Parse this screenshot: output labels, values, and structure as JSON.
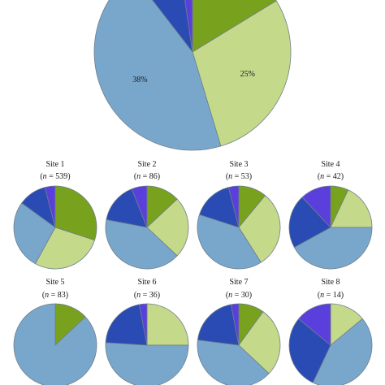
{
  "colors": {
    "dark_green": "#78a11e",
    "light_green": "#c5d98b",
    "light_blue": "#79a7cc",
    "dark_blue": "#2a4bb3",
    "purple": "#5a3fdc",
    "outline": "#6f7f8a"
  },
  "chart_data": [
    {
      "type": "pie",
      "name": "overall",
      "slices": [
        {
          "category": "dark_green",
          "value": 14
        },
        {
          "category": "light_green",
          "value": 25,
          "label": "25%"
        },
        {
          "category": "light_blue",
          "value": 38,
          "label": "38%"
        },
        {
          "category": "dark_blue",
          "value": 7
        },
        {
          "category": "purple",
          "value": 2
        }
      ]
    },
    {
      "type": "pie",
      "title": "Site 1",
      "n_prefix": "n",
      "n_suffix": " = 539",
      "slices": [
        {
          "category": "dark_green",
          "value": 30
        },
        {
          "category": "light_green",
          "value": 28
        },
        {
          "category": "light_blue",
          "value": 27
        },
        {
          "category": "dark_blue",
          "value": 11
        },
        {
          "category": "purple",
          "value": 4
        }
      ]
    },
    {
      "type": "pie",
      "title": "Site 2",
      "n_prefix": "n",
      "n_suffix": " = 86",
      "slices": [
        {
          "category": "dark_green",
          "value": 13
        },
        {
          "category": "light_green",
          "value": 24
        },
        {
          "category": "light_blue",
          "value": 41
        },
        {
          "category": "dark_blue",
          "value": 16
        },
        {
          "category": "purple",
          "value": 6
        }
      ]
    },
    {
      "type": "pie",
      "title": "Site 3",
      "n_prefix": "n",
      "n_suffix": " = 53",
      "slices": [
        {
          "category": "dark_green",
          "value": 11
        },
        {
          "category": "light_green",
          "value": 30
        },
        {
          "category": "light_blue",
          "value": 39
        },
        {
          "category": "dark_blue",
          "value": 16
        },
        {
          "category": "purple",
          "value": 4
        }
      ]
    },
    {
      "type": "pie",
      "title": "Site 4",
      "n_prefix": "n",
      "n_suffix": " = 42",
      "slices": [
        {
          "category": "dark_green",
          "value": 7
        },
        {
          "category": "light_green",
          "value": 18
        },
        {
          "category": "light_blue",
          "value": 42
        },
        {
          "category": "dark_blue",
          "value": 21
        },
        {
          "category": "purple",
          "value": 12
        }
      ]
    },
    {
      "type": "pie",
      "title": "Site 5",
      "n_prefix": "n",
      "n_suffix": " = 83",
      "slices": [
        {
          "category": "dark_green",
          "value": 13
        },
        {
          "category": "light_green",
          "value": 0
        },
        {
          "category": "light_blue",
          "value": 87
        },
        {
          "category": "dark_blue",
          "value": 0
        },
        {
          "category": "purple",
          "value": 0
        }
      ]
    },
    {
      "type": "pie",
      "title": "Site 6",
      "n_prefix": "n",
      "n_suffix": " = 36",
      "slices": [
        {
          "category": "dark_green",
          "value": 0
        },
        {
          "category": "light_green",
          "value": 25
        },
        {
          "category": "light_blue",
          "value": 51
        },
        {
          "category": "dark_blue",
          "value": 21
        },
        {
          "category": "purple",
          "value": 3
        }
      ]
    },
    {
      "type": "pie",
      "title": "Site 7",
      "n_prefix": "n",
      "n_suffix": " = 30",
      "slices": [
        {
          "category": "dark_green",
          "value": 10
        },
        {
          "category": "light_green",
          "value": 27
        },
        {
          "category": "light_blue",
          "value": 40
        },
        {
          "category": "dark_blue",
          "value": 20
        },
        {
          "category": "purple",
          "value": 3
        }
      ]
    },
    {
      "type": "pie",
      "title": "Site 8",
      "n_prefix": "n",
      "n_suffix": " = 14",
      "slices": [
        {
          "category": "dark_green",
          "value": 0
        },
        {
          "category": "light_green",
          "value": 14
        },
        {
          "category": "light_blue",
          "value": 43
        },
        {
          "category": "dark_blue",
          "value": 29
        },
        {
          "category": "purple",
          "value": 14
        }
      ]
    }
  ]
}
